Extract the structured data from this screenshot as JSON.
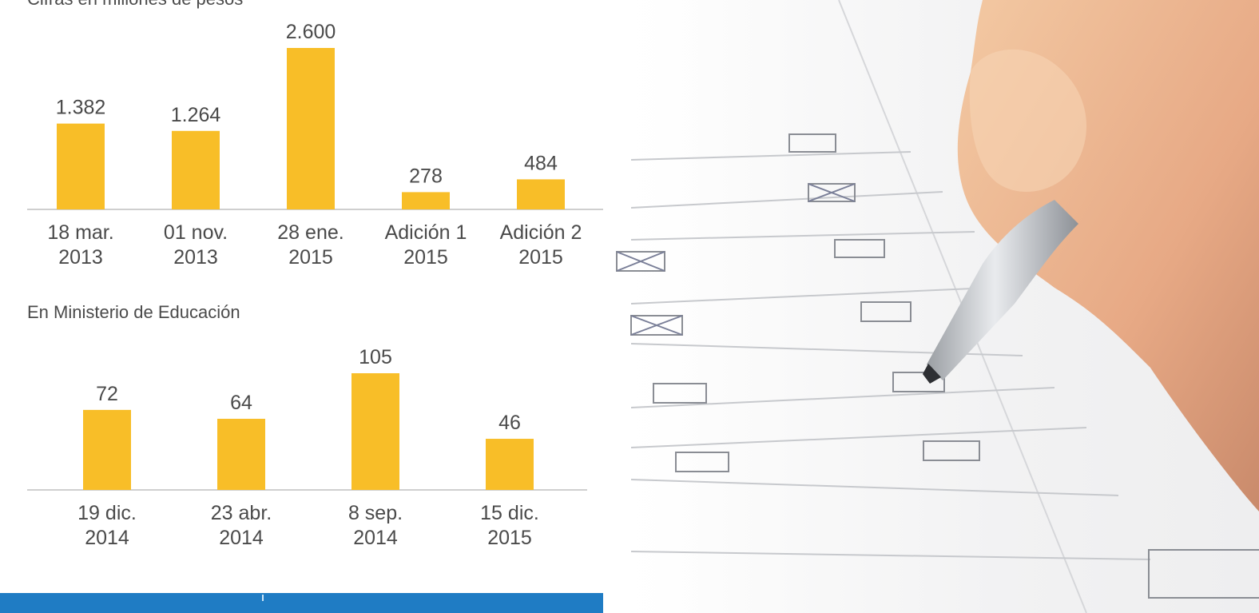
{
  "chart_data": [
    {
      "type": "bar",
      "title": "Cifras en millones de pesos",
      "categories": [
        "18 mar. 2013",
        "01 nov. 2013",
        "28 ene. 2015",
        "Adición 1 2015",
        "Adición 2 2015"
      ],
      "category_lines": [
        [
          "18 mar.",
          "2013"
        ],
        [
          "01 nov.",
          "2013"
        ],
        [
          "28 ene.",
          "2015"
        ],
        [
          "Adición 1",
          "2015"
        ],
        [
          "Adición 2",
          "2015"
        ]
      ],
      "values": [
        1382,
        1264,
        2600,
        278,
        484
      ],
      "value_labels": [
        "1.382",
        "1.264",
        "2.600",
        "278",
        "484"
      ],
      "ylim": [
        0,
        2600
      ],
      "grid": false,
      "bar_color": "#f8be28",
      "axis_color": "#cfcfcf"
    },
    {
      "type": "bar",
      "title": "En Ministerio de Educación",
      "categories": [
        "19 dic. 2014",
        "23 abr. 2014",
        "8 sep. 2014",
        "15 dic. 2015"
      ],
      "category_lines": [
        [
          "19 dic.",
          "2014"
        ],
        [
          "23 abr.",
          "2014"
        ],
        [
          "8 sep.",
          "2014"
        ],
        [
          "15 dic.",
          "2015"
        ]
      ],
      "values": [
        72,
        64,
        105,
        46
      ],
      "value_labels": [
        "72",
        "64",
        "105",
        "46"
      ],
      "ylim": [
        0,
        105
      ],
      "grid": false,
      "bar_color": "#f8be28",
      "axis_color": "#cfcfcf"
    }
  ],
  "colors": {
    "footer": "#1f7cc4",
    "text": "#4a4a4a"
  },
  "photo": {
    "subject": "hand-with-pen-checking-form-boxes"
  }
}
